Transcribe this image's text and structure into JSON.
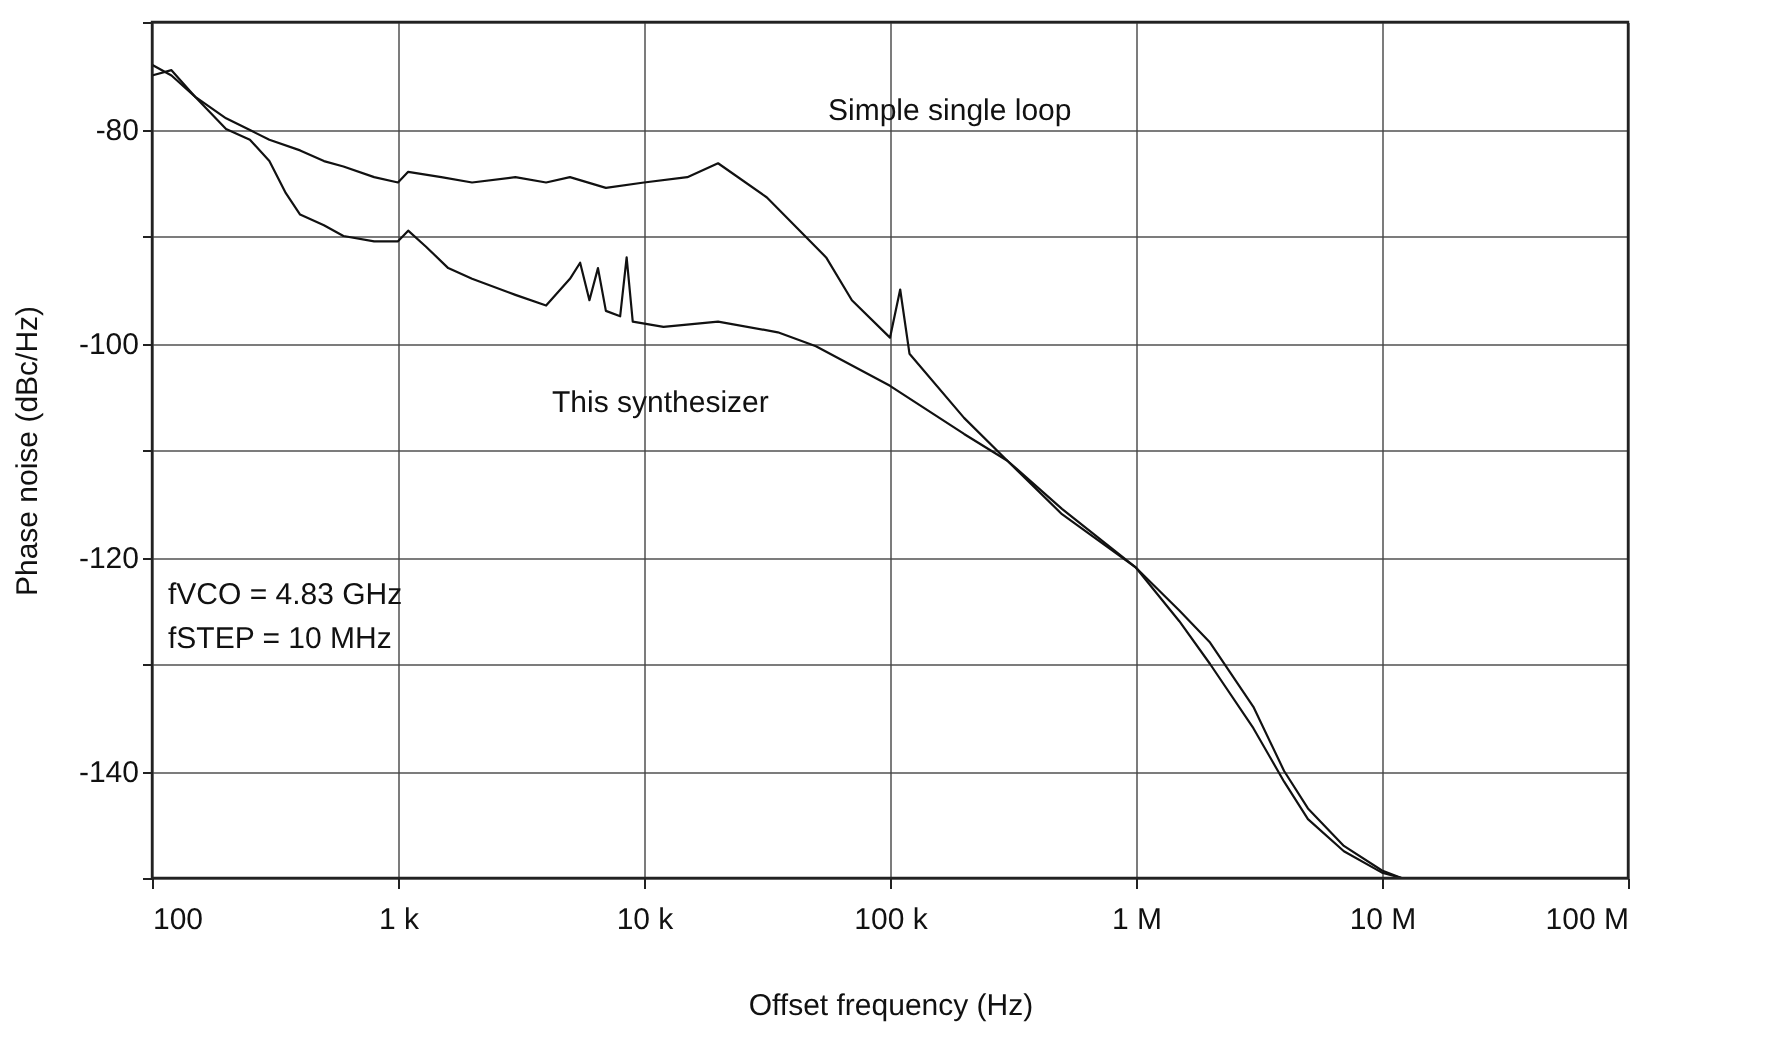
{
  "chart_data": {
    "type": "line",
    "xlabel": "Offset frequency (Hz)",
    "ylabel": "Phase noise (dBc/Hz)",
    "log": "x",
    "grid": true,
    "marker": "none",
    "line_style": "solid",
    "xlim": [
      100,
      100000000
    ],
    "xticks": [
      100,
      {
        "value": 1000,
        "label": "1 k"
      },
      {
        "value": 10000,
        "label": "10 k"
      },
      {
        "value": 100000,
        "label": "100 k"
      },
      {
        "value": 1000000,
        "label": "1 M"
      },
      {
        "value": 10000000,
        "label": "10 M"
      },
      {
        "value": 100000000,
        "label": "100 M"
      }
    ],
    "ylim": [
      -150,
      -70
    ],
    "yticks": [
      {
        "value": -150,
        "label": null
      },
      -140,
      {
        "value": -130,
        "label": null
      },
      -120,
      {
        "value": -110,
        "label": null
      },
      -100,
      {
        "value": -90,
        "label": null
      },
      -80,
      {
        "value": -70,
        "label": null
      }
    ],
    "series": [
      {
        "color": "#111111",
        "x": [
          100,
          120,
          150,
          200,
          300,
          400,
          500,
          600,
          800,
          1000,
          1100,
          1500,
          2000,
          3000,
          4000,
          5000,
          7000,
          10000,
          15000,
          20000,
          31600,
          55000,
          70000,
          100000,
          110000,
          120000,
          200000,
          300000,
          500000,
          1000000,
          1500000,
          2000000,
          3000000,
          4000000,
          5000000,
          7000000,
          10000000,
          12000000
        ],
        "values": [
          -74,
          -75,
          -77,
          -79,
          -81,
          -82,
          -83,
          -83.5,
          -84.5,
          -85,
          -84,
          -84.5,
          -85,
          -84.5,
          -85,
          -84.5,
          -85.5,
          -85,
          -84.5,
          -83.2,
          -86.4,
          -92,
          -96,
          -99.5,
          -95,
          -101,
          -107,
          -111,
          -116,
          -121,
          -125,
          -128,
          -134,
          -140,
          -143.5,
          -147,
          -149.3,
          -150
        ]
      },
      {
        "color": "#111111",
        "x": [
          100,
          120,
          150,
          200,
          250,
          300,
          350,
          400,
          500,
          600,
          800,
          1000,
          1100,
          1300,
          1600,
          2000,
          3000,
          4000,
          5000,
          5500,
          6000,
          6500,
          7000,
          8000,
          8500,
          9000,
          12000,
          20000,
          35000,
          50000,
          100000,
          200000,
          300000,
          500000,
          1000000,
          1500000,
          2000000,
          3000000,
          4000000,
          5000000,
          7000000,
          10000000,
          12000000
        ],
        "values": [
          -75,
          -74.5,
          -77,
          -80,
          -81,
          -83,
          -86,
          -88,
          -89,
          -90,
          -90.5,
          -90.5,
          -89.5,
          -91,
          -93,
          -94,
          -95.5,
          -96.5,
          -94,
          -92.5,
          -96,
          -93,
          -97,
          -97.5,
          -92,
          -98,
          -98.5,
          -98,
          -99,
          -100.3,
          -104,
          -108.5,
          -111,
          -115.5,
          -121,
          -126,
          -130,
          -136,
          -141,
          -144.5,
          -147.5,
          -149.5,
          -150
        ]
      }
    ],
    "annotations": [
      "Simple single loop",
      "This synthesizer",
      "fVCO = 4.83 GHz",
      "fSTEP = 10 MHz"
    ]
  }
}
